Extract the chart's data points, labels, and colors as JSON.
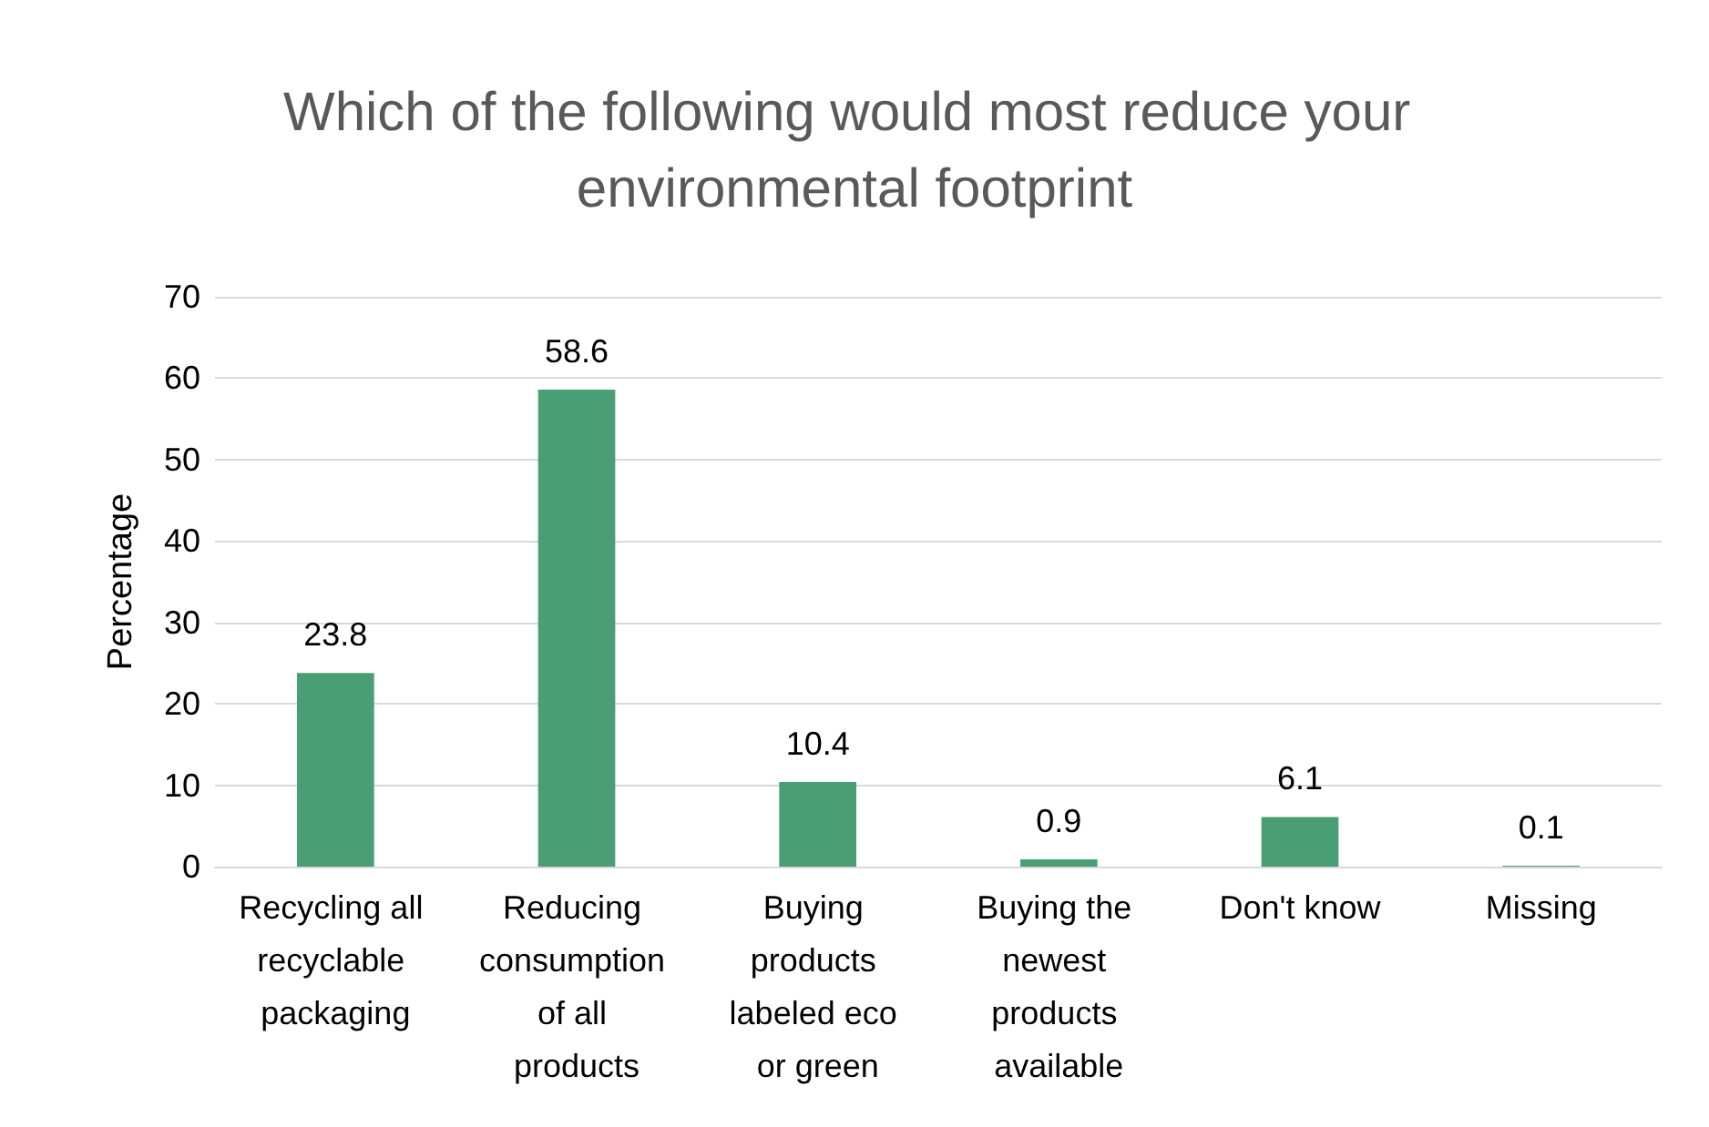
{
  "chart_data": {
    "type": "bar",
    "title": "Which of the following would most reduce your environmental footprint",
    "ylabel": "Percentage",
    "categories": [
      "Recycling all recyclable packaging",
      "Reducing consumption of all products",
      "Buying products labeled eco or green",
      "Buying the newest products available",
      "Don't know",
      "Missing"
    ],
    "values": [
      23.8,
      58.6,
      10.4,
      0.9,
      6.1,
      0.1
    ],
    "color": "#4a9e74",
    "ylim": [
      0,
      70
    ],
    "yticks": [
      0,
      10,
      20,
      30,
      40,
      50,
      60,
      70
    ],
    "grid": "y",
    "data_labels": true
  }
}
